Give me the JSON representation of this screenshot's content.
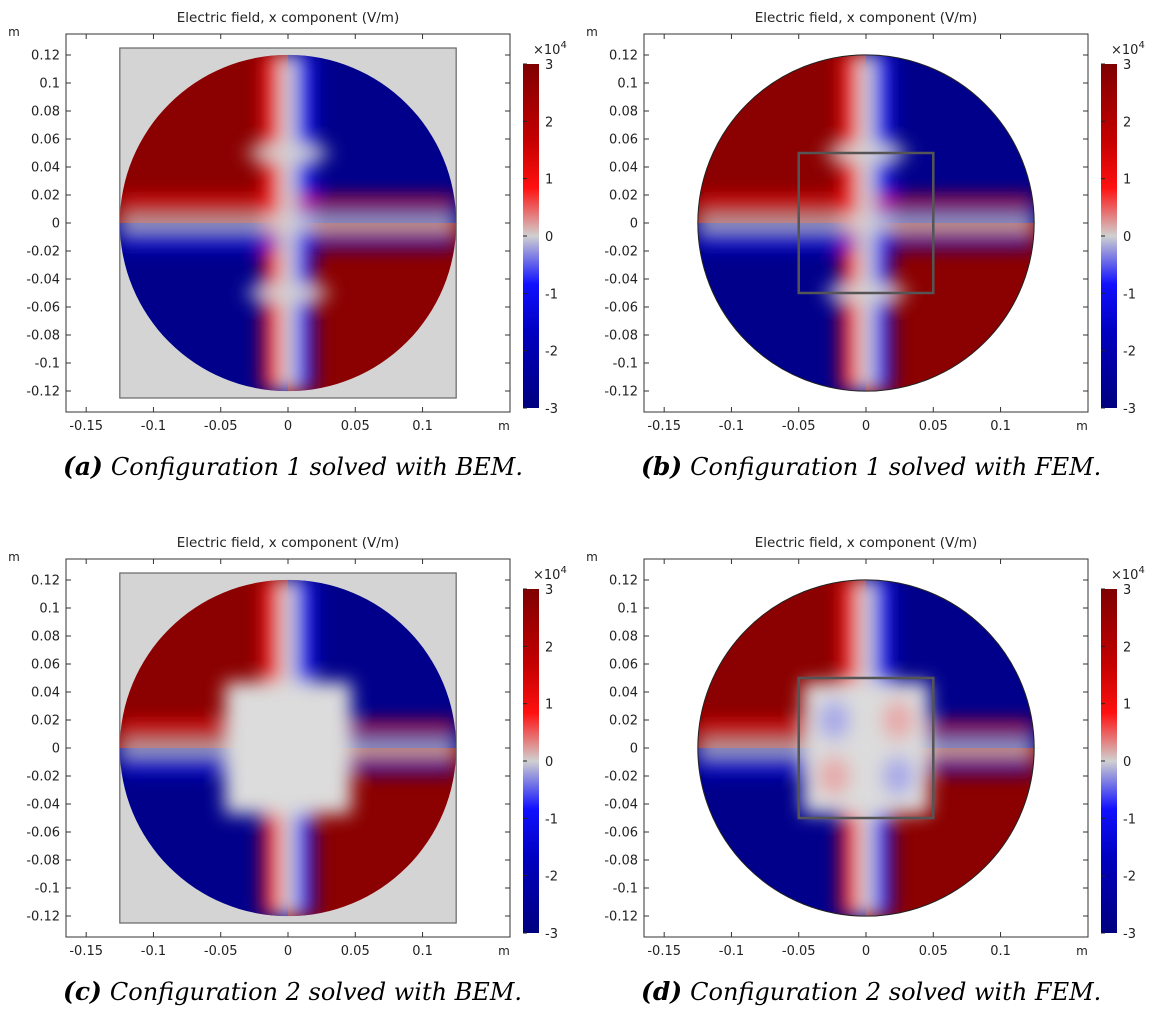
{
  "chart_data": [
    {
      "panel_id": "a",
      "type": "heatmap",
      "title": "Electric field, x component (V/m)",
      "caption_label": "(a)",
      "caption_text": "Configuration 1 solved with BEM.",
      "method": "BEM",
      "configuration": 1,
      "has_square_background": true,
      "inner_region": "field-penetrates",
      "xlabel": "m",
      "ylabel": "m",
      "xlim": [
        -0.165,
        0.165
      ],
      "ylim": [
        -0.135,
        0.135
      ],
      "x_ticks": [
        "-0.15",
        "-0.1",
        "-0.05",
        "0",
        "0.05",
        "0.1"
      ],
      "y_ticks": [
        "0.12",
        "0.1",
        "0.08",
        "0.06",
        "0.04",
        "0.02",
        "0",
        "-0.02",
        "-0.04",
        "-0.06",
        "-0.08",
        "-0.1",
        "-0.12"
      ],
      "colorbar": {
        "min": -30000,
        "max": 30000,
        "multiplier": "×10",
        "exponent": "4",
        "ticks": [
          "3",
          "2",
          "1",
          "0",
          "-1",
          "-2",
          "-3"
        ]
      }
    },
    {
      "panel_id": "b",
      "type": "heatmap",
      "title": "Electric field, x component (V/m)",
      "caption_label": "(b)",
      "caption_text": "Configuration 1 solved with FEM.",
      "method": "FEM",
      "configuration": 1,
      "has_square_background": false,
      "inner_region": "field-penetrates",
      "xlabel": "m",
      "ylabel": "m",
      "xlim": [
        -0.165,
        0.165
      ],
      "ylim": [
        -0.135,
        0.135
      ],
      "x_ticks": [
        "-0.15",
        "-0.1",
        "-0.05",
        "0",
        "0.05",
        "0.1"
      ],
      "y_ticks": [
        "0.12",
        "0.1",
        "0.08",
        "0.06",
        "0.04",
        "0.02",
        "0",
        "-0.02",
        "-0.04",
        "-0.06",
        "-0.08",
        "-0.1",
        "-0.12"
      ],
      "colorbar": {
        "min": -30000,
        "max": 30000,
        "multiplier": "×10",
        "exponent": "4",
        "ticks": [
          "3",
          "2",
          "1",
          "0",
          "-1",
          "-2",
          "-3"
        ]
      }
    },
    {
      "panel_id": "c",
      "type": "heatmap",
      "title": "Electric field, x component (V/m)",
      "caption_label": "(c)",
      "caption_text": "Configuration 2 solved with BEM.",
      "method": "BEM",
      "configuration": 2,
      "has_square_background": true,
      "inner_region": "shielded",
      "xlabel": "m",
      "ylabel": "m",
      "xlim": [
        -0.165,
        0.165
      ],
      "ylim": [
        -0.135,
        0.135
      ],
      "x_ticks": [
        "-0.15",
        "-0.1",
        "-0.05",
        "0",
        "0.05",
        "0.1"
      ],
      "y_ticks": [
        "0.12",
        "0.1",
        "0.08",
        "0.06",
        "0.04",
        "0.02",
        "0",
        "-0.02",
        "-0.04",
        "-0.06",
        "-0.08",
        "-0.1",
        "-0.12"
      ],
      "colorbar": {
        "min": -30000,
        "max": 30000,
        "multiplier": "×10",
        "exponent": "4",
        "ticks": [
          "3",
          "2",
          "1",
          "0",
          "-1",
          "-2",
          "-3"
        ]
      }
    },
    {
      "panel_id": "d",
      "type": "heatmap",
      "title": "Electric field, x component (V/m)",
      "caption_label": "(d)",
      "caption_text": "Configuration 2 solved with FEM.",
      "method": "FEM",
      "configuration": 2,
      "has_square_background": false,
      "inner_region": "shielded",
      "xlabel": "m",
      "ylabel": "m",
      "xlim": [
        -0.165,
        0.165
      ],
      "ylim": [
        -0.135,
        0.135
      ],
      "x_ticks": [
        "-0.15",
        "-0.1",
        "-0.05",
        "0",
        "0.05",
        "0.1"
      ],
      "y_ticks": [
        "0.12",
        "0.1",
        "0.08",
        "0.06",
        "0.04",
        "0.02",
        "0",
        "-0.02",
        "-0.04",
        "-0.06",
        "-0.08",
        "-0.1",
        "-0.12"
      ],
      "colorbar": {
        "min": -30000,
        "max": 30000,
        "multiplier": "×10",
        "exponent": "4",
        "ticks": [
          "3",
          "2",
          "1",
          "0",
          "-1",
          "-2",
          "-3"
        ]
      }
    }
  ]
}
